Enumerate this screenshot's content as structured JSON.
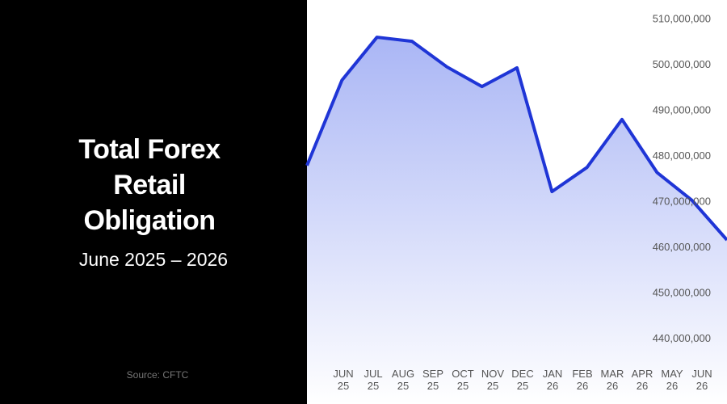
{
  "chart_data": {
    "type": "area",
    "title": "Total Forex Retail Obligation",
    "subtitle": "June 2025 – 2026",
    "source": "Source: CFTC",
    "categories": [
      "JUN 25",
      "JUL 25",
      "AUG 25",
      "SEP 25",
      "OCT 25",
      "NOV 25",
      "DEC 25",
      "JAN 26",
      "FEB 26",
      "MAR 26",
      "APR 26",
      "MAY 26",
      "JUN 26"
    ],
    "values": [
      478000000,
      496700000,
      506100000,
      505200000,
      499600000,
      495300000,
      499400000,
      472300000,
      477600000,
      488100000,
      476500000,
      470400000,
      461700000
    ],
    "color": "#1f35d6",
    "ylim": [
      425800000,
      514250000
    ],
    "yticks": [
      {
        "value": 440000000,
        "label": "440,000,000"
      },
      {
        "value": 450000000,
        "label": "450,000,000"
      },
      {
        "value": 460000000,
        "label": "460,000,000"
      },
      {
        "value": 470000000,
        "label": "470,000,000"
      },
      {
        "value": 480000000,
        "label": "480,000,000"
      },
      {
        "value": 490000000,
        "label": "490,000,000"
      },
      {
        "value": 500000000,
        "label": "500,000,000"
      },
      {
        "value": 510000000,
        "label": "510,000,000"
      }
    ]
  }
}
